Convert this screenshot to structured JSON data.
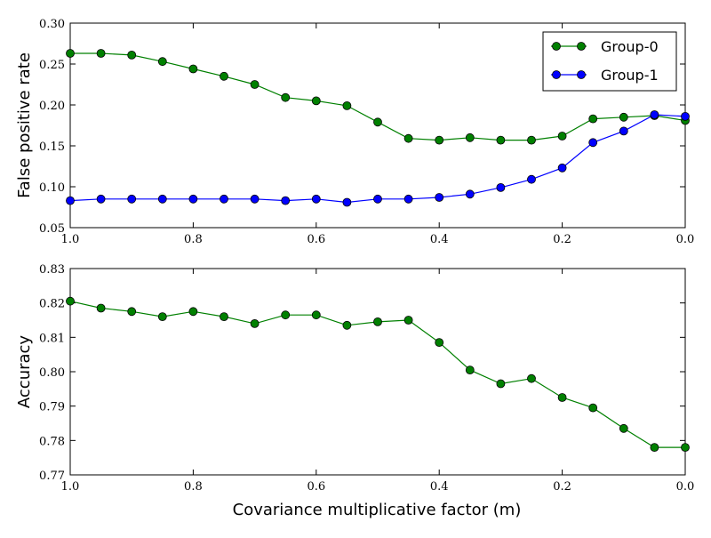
{
  "chart_data": [
    {
      "type": "line",
      "title": "",
      "xlabel": "",
      "ylabel": "False positive rate",
      "xlim": [
        1.0,
        0.0
      ],
      "ylim": [
        0.05,
        0.3
      ],
      "x_ticks": [
        "1.0",
        "0.8",
        "0.6",
        "0.4",
        "0.2",
        "0.0"
      ],
      "y_ticks": [
        "0.05",
        "0.10",
        "0.15",
        "0.20",
        "0.25",
        "0.30"
      ],
      "legend_position": "top-right",
      "x": [
        1.0,
        0.95,
        0.9,
        0.85,
        0.8,
        0.75,
        0.7,
        0.65,
        0.6,
        0.55,
        0.5,
        0.45,
        0.4,
        0.35,
        0.3,
        0.25,
        0.2,
        0.15,
        0.1,
        0.05,
        0.0
      ],
      "series": [
        {
          "name": "Group-0",
          "color": "#008000",
          "values": [
            0.263,
            0.263,
            0.261,
            0.253,
            0.244,
            0.235,
            0.225,
            0.209,
            0.205,
            0.199,
            0.179,
            0.159,
            0.157,
            0.16,
            0.157,
            0.157,
            0.162,
            0.183,
            0.185,
            0.187,
            0.181
          ]
        },
        {
          "name": "Group-1",
          "color": "#0000ff",
          "values": [
            0.083,
            0.085,
            0.085,
            0.085,
            0.085,
            0.085,
            0.085,
            0.083,
            0.085,
            0.081,
            0.085,
            0.085,
            0.087,
            0.091,
            0.099,
            0.109,
            0.123,
            0.154,
            0.168,
            0.188,
            0.186
          ]
        }
      ]
    },
    {
      "type": "line",
      "title": "",
      "xlabel": "Covariance multiplicative factor (m)",
      "ylabel": "Accuracy",
      "xlim": [
        1.0,
        0.0
      ],
      "ylim": [
        0.77,
        0.83
      ],
      "x_ticks": [
        "1.0",
        "0.8",
        "0.6",
        "0.4",
        "0.2",
        "0.0"
      ],
      "y_ticks": [
        "0.77",
        "0.78",
        "0.79",
        "0.80",
        "0.81",
        "0.82",
        "0.83"
      ],
      "x": [
        1.0,
        0.95,
        0.9,
        0.85,
        0.8,
        0.75,
        0.7,
        0.65,
        0.6,
        0.55,
        0.5,
        0.45,
        0.4,
        0.35,
        0.3,
        0.25,
        0.2,
        0.15,
        0.1,
        0.05,
        0.0
      ],
      "series": [
        {
          "color": "#008000",
          "values": [
            0.8205,
            0.8185,
            0.8175,
            0.816,
            0.8175,
            0.816,
            0.814,
            0.8165,
            0.8165,
            0.8135,
            0.8145,
            0.815,
            0.8085,
            0.8005,
            0.7965,
            0.798,
            0.7925,
            0.7895,
            0.7835,
            0.778,
            0.778
          ]
        }
      ]
    }
  ]
}
